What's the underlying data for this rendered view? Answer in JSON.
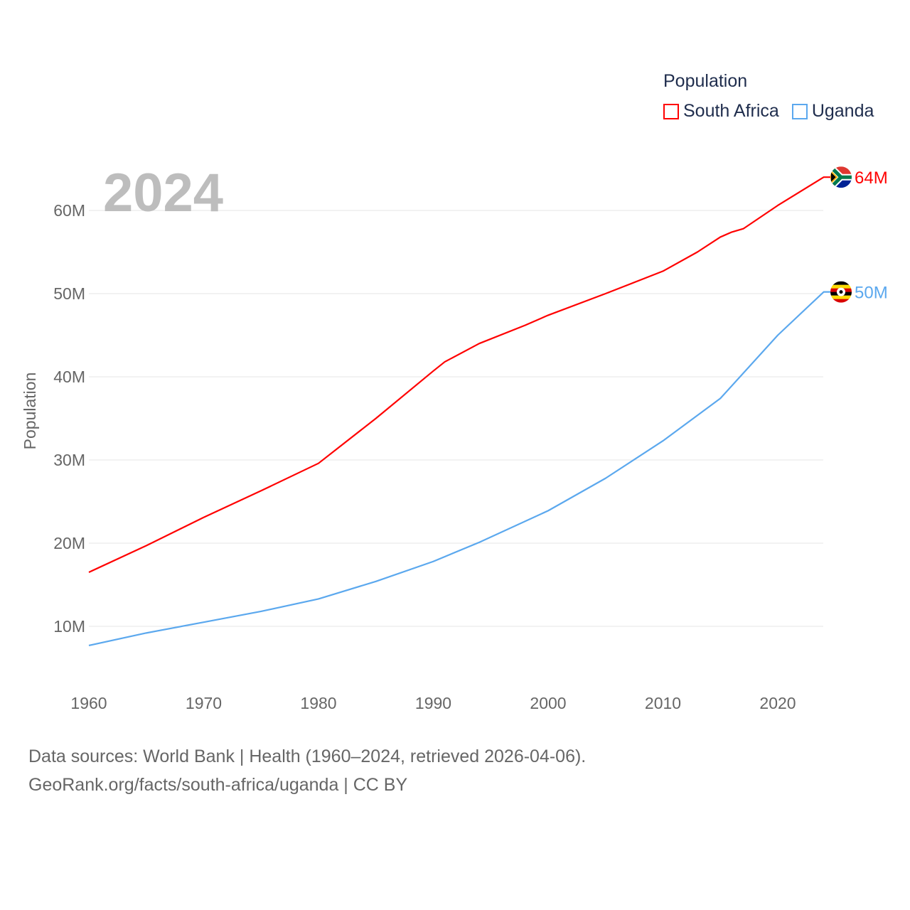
{
  "chart_data": {
    "type": "line",
    "title": "Population",
    "ylabel": "Population",
    "xlabel": "",
    "xlim": [
      1960,
      2024
    ],
    "ylim": [
      0,
      70
    ],
    "y_unit": "M",
    "x_ticks": [
      1960,
      1970,
      1980,
      1990,
      2000,
      2010,
      2020
    ],
    "y_ticks": [
      10,
      20,
      30,
      40,
      50,
      60
    ],
    "y_tick_labels": [
      "10M",
      "20M",
      "30M",
      "40M",
      "50M",
      "60M"
    ],
    "grid": true,
    "legend_position": "top-right",
    "year_label": "2024",
    "series": [
      {
        "name": "South Africa",
        "color": "#ff0000",
        "end_label": "64M",
        "x": [
          1960,
          1965,
          1970,
          1975,
          1980,
          1985,
          1990,
          1991,
          1994,
          1998,
          2000,
          2005,
          2010,
          2013,
          2015,
          2016,
          2017,
          2020,
          2024
        ],
        "values": [
          16.5,
          19.7,
          23.1,
          26.3,
          29.6,
          35.0,
          40.7,
          41.8,
          44.0,
          46.2,
          47.4,
          50.0,
          52.7,
          55.0,
          56.8,
          57.4,
          57.8,
          60.6,
          64.0
        ]
      },
      {
        "name": "Uganda",
        "color": "#5ba8ee",
        "end_label": "50M",
        "x": [
          1960,
          1965,
          1970,
          1975,
          1980,
          1985,
          1990,
          1994,
          2000,
          2005,
          2010,
          2015,
          2020,
          2024
        ],
        "values": [
          7.7,
          9.2,
          10.5,
          11.8,
          13.3,
          15.4,
          17.8,
          20.1,
          23.9,
          27.8,
          32.3,
          37.4,
          45.0,
          50.2
        ]
      }
    ]
  },
  "source": {
    "line1": "Data sources: World Bank | Health (1960–2024, retrieved 2026-04-06).",
    "line2": "GeoRank.org/facts/south-africa/uganda | CC BY"
  }
}
